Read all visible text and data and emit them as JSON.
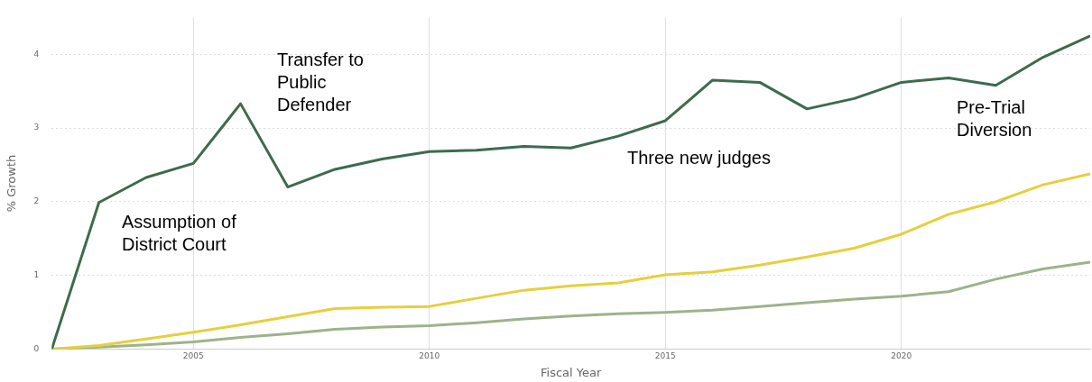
{
  "chart_data": {
    "type": "line",
    "xlabel": "Fiscal Year",
    "ylabel": "% Growth",
    "x": [
      2002,
      2003,
      2004,
      2005,
      2006,
      2007,
      2008,
      2009,
      2010,
      2011,
      2012,
      2013,
      2014,
      2015,
      2016,
      2017,
      2018,
      2019,
      2020,
      2021,
      2022,
      2023,
      2024
    ],
    "series": [
      {
        "color": "#3d6b4f",
        "values": [
          0,
          1.99,
          2.33,
          2.52,
          3.33,
          2.2,
          2.44,
          2.58,
          2.68,
          2.7,
          2.75,
          2.73,
          2.89,
          3.1,
          3.65,
          3.62,
          3.26,
          3.4,
          3.62,
          3.68,
          3.58,
          3.96,
          4.25
        ]
      },
      {
        "color": "#e6cf3c",
        "values": [
          0,
          0.05,
          0.14,
          0.23,
          0.33,
          0.44,
          0.55,
          0.57,
          0.58,
          0.69,
          0.8,
          0.86,
          0.9,
          1.01,
          1.05,
          1.14,
          1.25,
          1.37,
          1.56,
          1.83,
          2.0,
          2.23,
          2.38
        ]
      },
      {
        "color": "#9db38a",
        "values": [
          0,
          0.03,
          0.06,
          0.1,
          0.16,
          0.21,
          0.27,
          0.3,
          0.32,
          0.36,
          0.41,
          0.45,
          0.48,
          0.5,
          0.53,
          0.58,
          0.63,
          0.68,
          0.72,
          0.78,
          0.95,
          1.09,
          1.18
        ]
      }
    ],
    "xlim": [
      2002,
      2024
    ],
    "xticks": [
      2005,
      2010,
      2015,
      2020
    ],
    "ylim": [
      0,
      4.5
    ],
    "yticks": [
      0,
      1,
      2,
      3,
      4
    ],
    "grid": true,
    "legend": false,
    "marker": "none",
    "line_style": "solid",
    "annotations": [
      "Assumption of\nDistrict Court",
      "Transfer to\nPublic\nDefender",
      "Three new judges",
      "Pre-Trial\nDiversion"
    ]
  }
}
